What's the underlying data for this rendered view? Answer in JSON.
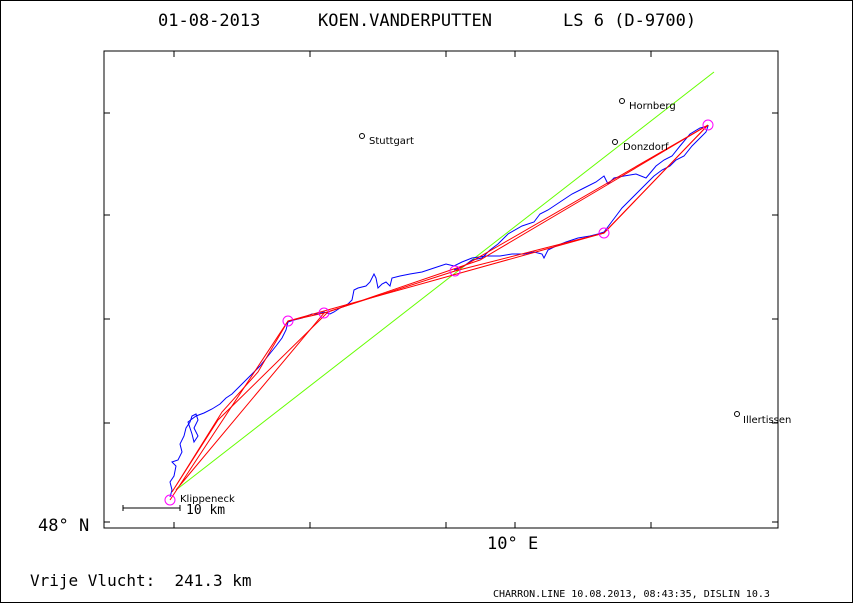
{
  "header": {
    "date": "01-08-2013",
    "pilot": "KOEN.VANDERPUTTEN",
    "glider": "LS 6 (D-9700)"
  },
  "axes": {
    "lat_label": "48° N",
    "lon_label": "10° E"
  },
  "scale_bar": {
    "label": "10 km"
  },
  "places": [
    {
      "name": "Stuttgart"
    },
    {
      "name": "Hornberg"
    },
    {
      "name": "Donzdorf"
    },
    {
      "name": "Illertissen"
    },
    {
      "name": "Klippeneck"
    }
  ],
  "footer": {
    "distance_text": "Vrije Vlucht:  241.3 km",
    "credits": "CHARRON.LINE 10.08.2013, 08:43:35, DISLIN 10.3"
  },
  "colors": {
    "track": "#0000ff",
    "task": "#ff0000",
    "turnpoint": "#ff00ff",
    "reference_line": "#66ff00",
    "axes": "#000000"
  }
}
